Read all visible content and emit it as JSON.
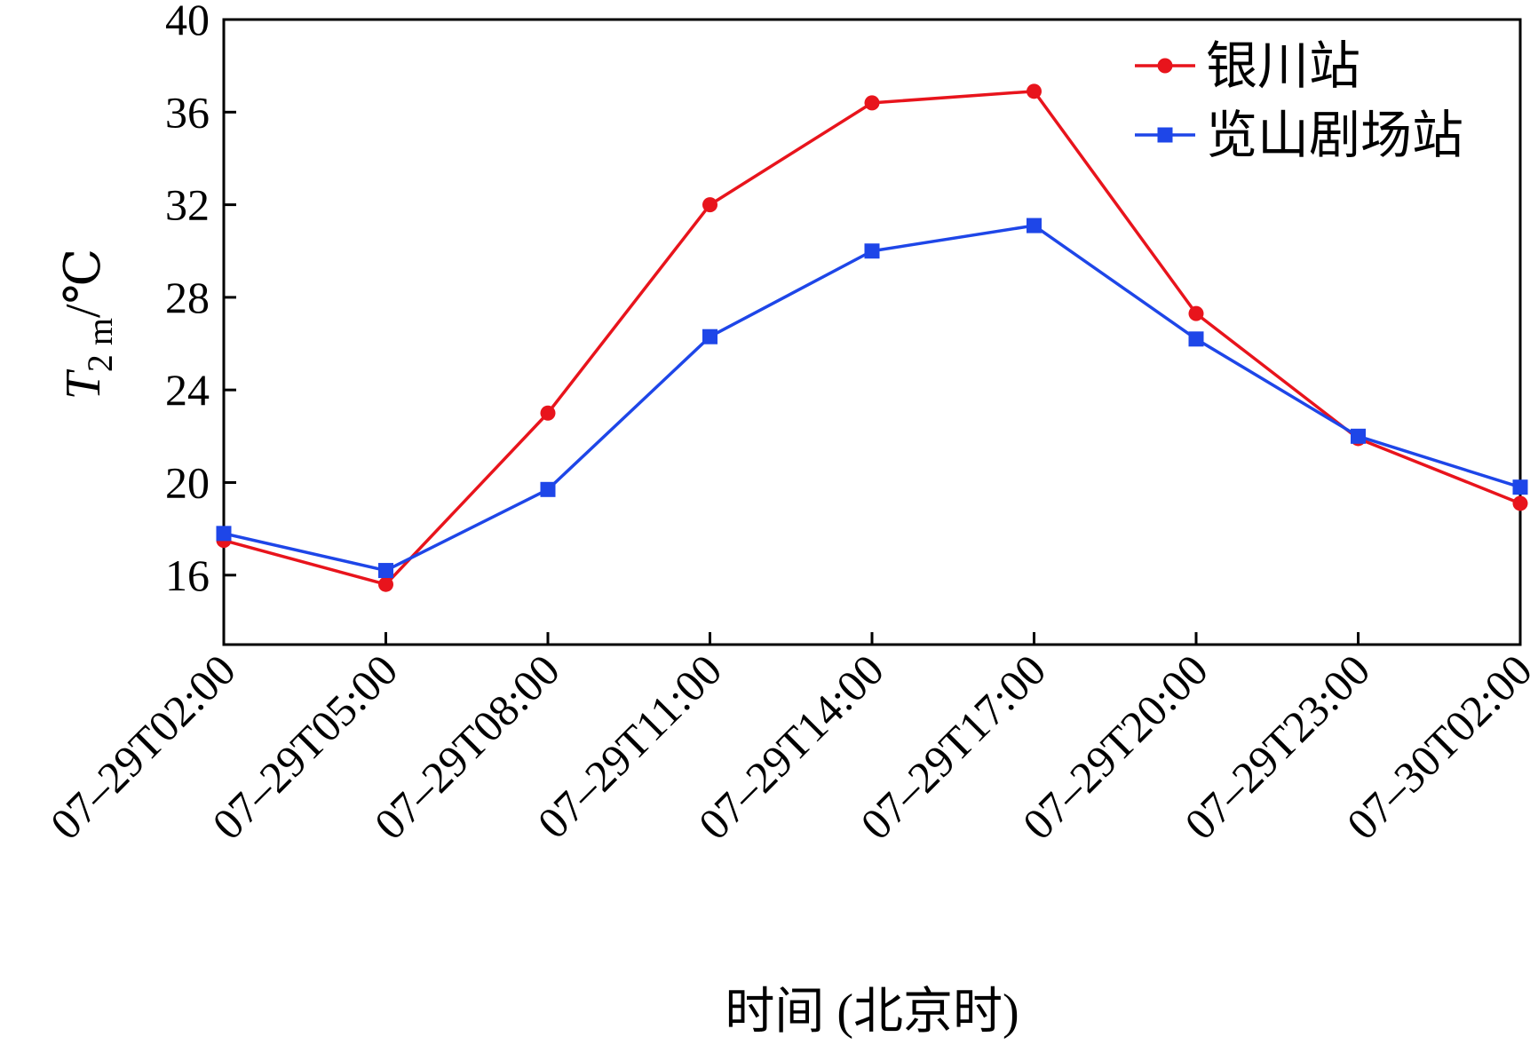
{
  "chart_data": {
    "type": "line",
    "xlabel": "时间 (北京时)",
    "ylabel": {
      "symbol": "T",
      "subscript": "2 m",
      "unit": "/℃"
    },
    "x": [
      "07–29T02:00",
      "07–29T05:00",
      "07–29T08:00",
      "07–29T11:00",
      "07–29T14:00",
      "07–29T17:00",
      "07–29T20:00",
      "07–29T23:00",
      "07–30T02:00"
    ],
    "ylim": [
      13,
      40
    ],
    "yticks": [
      16,
      20,
      24,
      28,
      32,
      36,
      40
    ],
    "grid": false,
    "legend_position": "top-right",
    "series": [
      {
        "name": "银川站",
        "color": "#e8141c",
        "marker": "circle",
        "values": [
          17.5,
          15.6,
          23.0,
          32.0,
          36.4,
          36.9,
          27.3,
          21.9,
          19.1
        ]
      },
      {
        "name": "览山剧场站",
        "color": "#1e46e8",
        "marker": "square",
        "values": [
          17.8,
          16.2,
          19.7,
          26.3,
          30.0,
          31.1,
          26.2,
          22.0,
          19.8
        ]
      }
    ]
  }
}
